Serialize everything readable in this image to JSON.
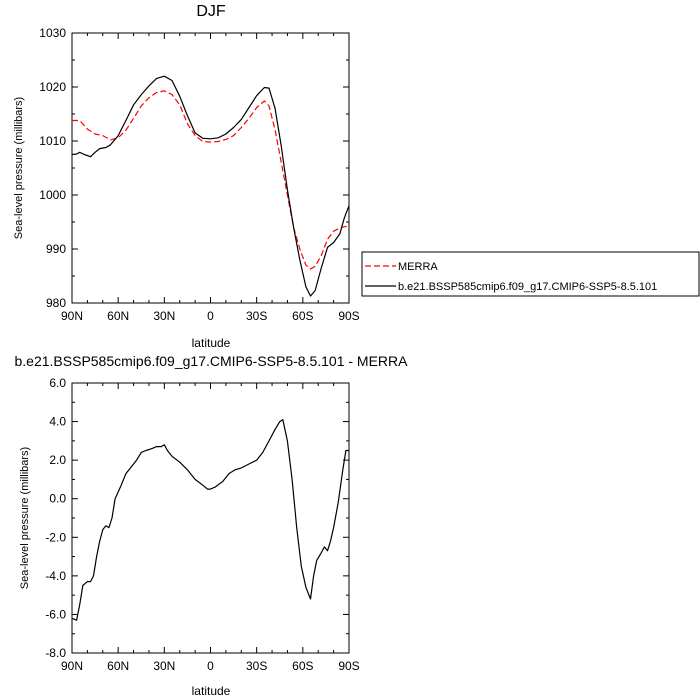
{
  "chart_data": [
    {
      "type": "line",
      "title": "DJF",
      "xlabel": "latitude",
      "ylabel": "Sea-level pressure (millibars)",
      "xlim": [
        90,
        -90
      ],
      "ylim": [
        980,
        1030
      ],
      "xticks": [
        90,
        60,
        30,
        0,
        -30,
        -60,
        -90
      ],
      "xtick_labels": [
        "90N",
        "60N",
        "30N",
        "0",
        "30S",
        "60S",
        "90S"
      ],
      "yticks": [
        980,
        990,
        1000,
        1010,
        1020,
        1030
      ],
      "ytick_labels": [
        "980",
        "990",
        "1000",
        "1010",
        "1020",
        "1030"
      ],
      "grid": false,
      "legend": "right",
      "series": [
        {
          "name": "MERRA",
          "color": "#ff0000",
          "dash": true,
          "points": [
            [
              90,
              1013.8
            ],
            [
              85,
              1013.8
            ],
            [
              80,
              1012.2
            ],
            [
              75,
              1011.3
            ],
            [
              70,
              1011.0
            ],
            [
              65,
              1010.2
            ],
            [
              60,
              1010.6
            ],
            [
              55,
              1012.0
            ],
            [
              50,
              1014.2
            ],
            [
              45,
              1016.5
            ],
            [
              40,
              1018.0
            ],
            [
              35,
              1019.0
            ],
            [
              30,
              1019.3
            ],
            [
              25,
              1018.6
            ],
            [
              20,
              1016.7
            ],
            [
              15,
              1013.2
            ],
            [
              10,
              1011.0
            ],
            [
              5,
              1009.9
            ],
            [
              0,
              1009.8
            ],
            [
              -5,
              1009.9
            ],
            [
              -10,
              1010.3
            ],
            [
              -15,
              1011.0
            ],
            [
              -20,
              1012.5
            ],
            [
              -25,
              1014.2
            ],
            [
              -30,
              1016.2
            ],
            [
              -35,
              1017.4
            ],
            [
              -38,
              1016.5
            ],
            [
              -42,
              1012.0
            ],
            [
              -46,
              1006.0
            ],
            [
              -50,
              1000.0
            ],
            [
              -54,
              994.0
            ],
            [
              -58,
              990.0
            ],
            [
              -62,
              987.0
            ],
            [
              -65,
              986.3
            ],
            [
              -68,
              986.8
            ],
            [
              -72,
              988.8
            ],
            [
              -76,
              991.8
            ],
            [
              -80,
              993.3
            ],
            [
              -85,
              994.0
            ],
            [
              -90,
              994.3
            ]
          ]
        },
        {
          "name": "b.e21.BSSP585cmip6.f09_g17.CMIP6-SSP5-8.5.101",
          "color": "#000000",
          "dash": false,
          "points": [
            [
              90,
              1007.5
            ],
            [
              87,
              1007.6
            ],
            [
              85,
              1007.9
            ],
            [
              82,
              1007.5
            ],
            [
              78,
              1007.1
            ],
            [
              75,
              1007.9
            ],
            [
              72,
              1008.6
            ],
            [
              68,
              1008.8
            ],
            [
              65,
              1009.3
            ],
            [
              60,
              1011.0
            ],
            [
              55,
              1013.8
            ],
            [
              50,
              1016.7
            ],
            [
              45,
              1018.6
            ],
            [
              40,
              1020.2
            ],
            [
              35,
              1021.6
            ],
            [
              30,
              1022.0
            ],
            [
              25,
              1021.2
            ],
            [
              20,
              1018.3
            ],
            [
              15,
              1014.7
            ],
            [
              10,
              1011.5
            ],
            [
              5,
              1010.5
            ],
            [
              0,
              1010.4
            ],
            [
              -5,
              1010.6
            ],
            [
              -10,
              1011.3
            ],
            [
              -15,
              1012.5
            ],
            [
              -20,
              1014.0
            ],
            [
              -25,
              1016.2
            ],
            [
              -30,
              1018.4
            ],
            [
              -35,
              1019.9
            ],
            [
              -38,
              1019.8
            ],
            [
              -42,
              1016.0
            ],
            [
              -46,
              1009.0
            ],
            [
              -50,
              1001.0
            ],
            [
              -54,
              994.0
            ],
            [
              -58,
              988.0
            ],
            [
              -62,
              983.0
            ],
            [
              -65,
              981.3
            ],
            [
              -68,
              982.3
            ],
            [
              -72,
              986.5
            ],
            [
              -76,
              990.3
            ],
            [
              -80,
              991.2
            ],
            [
              -84,
              992.8
            ],
            [
              -87,
              995.8
            ],
            [
              -90,
              998.0
            ]
          ]
        }
      ]
    },
    {
      "type": "line",
      "title": "b.e21.BSSP585cmip6.f09_g17.CMIP6-SSP5-8.5.101 - MERRA",
      "xlabel": "latitude",
      "ylabel": "Sea-level pressure (millibars)",
      "xlim": [
        90,
        -90
      ],
      "ylim": [
        -8,
        6
      ],
      "xticks": [
        90,
        60,
        30,
        0,
        -30,
        -60,
        -90
      ],
      "xtick_labels": [
        "90N",
        "60N",
        "30N",
        "0",
        "30S",
        "60S",
        "90S"
      ],
      "yticks": [
        -8,
        -6,
        -4,
        -2,
        0,
        2,
        4,
        6
      ],
      "ytick_labels": [
        "-8.0",
        "-6.0",
        "-4.0",
        "-2.0",
        "0.0",
        "2.0",
        "4.0",
        "6.0"
      ],
      "grid": false,
      "series": [
        {
          "color": "#000000",
          "dash": false,
          "points": [
            [
              90,
              -6.2
            ],
            [
              87,
              -6.3
            ],
            [
              85,
              -5.5
            ],
            [
              83,
              -4.5
            ],
            [
              80,
              -4.3
            ],
            [
              78,
              -4.3
            ],
            [
              76,
              -4.0
            ],
            [
              74,
              -3.0
            ],
            [
              72,
              -2.2
            ],
            [
              70,
              -1.6
            ],
            [
              68,
              -1.4
            ],
            [
              66,
              -1.5
            ],
            [
              64,
              -1.0
            ],
            [
              62,
              0.0
            ],
            [
              58,
              0.7
            ],
            [
              55,
              1.3
            ],
            [
              52,
              1.6
            ],
            [
              48,
              2.0
            ],
            [
              45,
              2.4
            ],
            [
              42,
              2.5
            ],
            [
              38,
              2.6
            ],
            [
              35,
              2.7
            ],
            [
              32,
              2.7
            ],
            [
              30,
              2.8
            ],
            [
              28,
              2.5
            ],
            [
              25,
              2.2
            ],
            [
              20,
              1.9
            ],
            [
              15,
              1.5
            ],
            [
              10,
              1.0
            ],
            [
              5,
              0.7
            ],
            [
              2,
              0.5
            ],
            [
              0,
              0.5
            ],
            [
              -3,
              0.6
            ],
            [
              -8,
              0.9
            ],
            [
              -12,
              1.3
            ],
            [
              -16,
              1.5
            ],
            [
              -20,
              1.6
            ],
            [
              -25,
              1.8
            ],
            [
              -30,
              2.0
            ],
            [
              -34,
              2.4
            ],
            [
              -38,
              3.0
            ],
            [
              -42,
              3.6
            ],
            [
              -45,
              4.0
            ],
            [
              -47,
              4.1
            ],
            [
              -50,
              3.0
            ],
            [
              -53,
              1.0
            ],
            [
              -56,
              -1.5
            ],
            [
              -59,
              -3.5
            ],
            [
              -62,
              -4.6
            ],
            [
              -65,
              -5.2
            ],
            [
              -67,
              -4.0
            ],
            [
              -69,
              -3.2
            ],
            [
              -72,
              -2.8
            ],
            [
              -74,
              -2.5
            ],
            [
              -76,
              -2.7
            ],
            [
              -78,
              -2.2
            ],
            [
              -80,
              -1.5
            ],
            [
              -83,
              -0.2
            ],
            [
              -86,
              1.5
            ],
            [
              -88,
              2.5
            ],
            [
              -90,
              2.5
            ]
          ]
        }
      ]
    }
  ]
}
